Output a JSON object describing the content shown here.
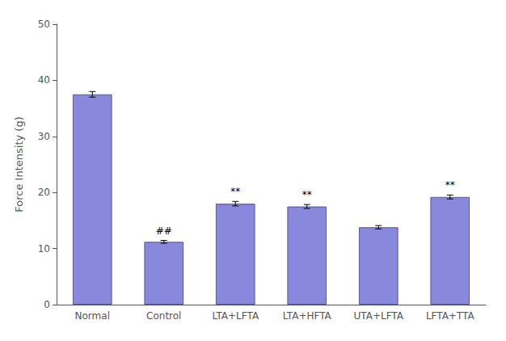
{
  "chart_data": {
    "type": "bar",
    "y_label": "Force Intensity (g)",
    "categories": [
      "Normal",
      "Control",
      "LTA+LFTA",
      "LTA+HFTA",
      "UTA+LFTA",
      "LFTA+TTA"
    ],
    "values": [
      37.5,
      11.2,
      18.0,
      17.5,
      13.8,
      19.2
    ],
    "errors": [
      0.5,
      0.25,
      0.4,
      0.35,
      0.3,
      0.35
    ],
    "color": "#8888dd",
    "ylim": [
      0,
      50
    ],
    "yticks": [
      0,
      10,
      20,
      30,
      40,
      50
    ],
    "annotations": [
      {
        "category": "Control",
        "text": "##"
      },
      {
        "category": "LTA+LFTA",
        "text": "**"
      },
      {
        "category": "LTA+HFTA",
        "text": "**"
      },
      {
        "category": "LFTA+TTA",
        "text": "**"
      }
    ],
    "grid": false
  }
}
